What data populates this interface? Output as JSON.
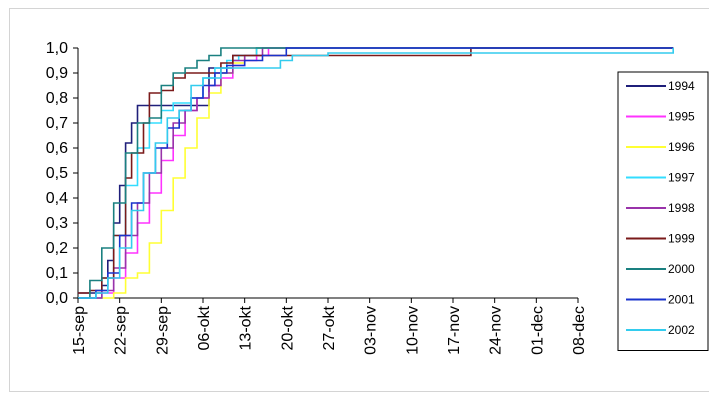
{
  "chart_data": {
    "type": "line",
    "title": "",
    "xlabel": "",
    "ylabel": "",
    "ylim": [
      0,
      1
    ],
    "y_ticks": [
      "0,0",
      "0,1",
      "0,2",
      "0,3",
      "0,4",
      "0,5",
      "0,6",
      "0,7",
      "0,8",
      "0,9",
      "1,0"
    ],
    "x_ticks": [
      "15-sep",
      "22-sep",
      "29-sep",
      "06-okt",
      "13-okt",
      "20-okt",
      "27-okt",
      "03-nov",
      "10-nov",
      "17-nov",
      "24-nov",
      "01-dec",
      "08-dec"
    ],
    "x_unit": "days since 15-sep",
    "legend_position": "right",
    "series": [
      {
        "name": "1994",
        "color": "#1f1f7a",
        "points": [
          [
            0,
            0.02
          ],
          [
            3,
            0.02
          ],
          [
            4,
            0.05
          ],
          [
            5,
            0.15
          ],
          [
            6,
            0.3
          ],
          [
            7,
            0.45
          ],
          [
            8,
            0.62
          ],
          [
            9,
            0.7
          ],
          [
            10,
            0.77
          ],
          [
            14,
            0.77
          ],
          [
            17,
            0.77
          ],
          [
            19,
            0.77
          ],
          [
            21,
            0.77
          ],
          [
            22,
            0.92
          ],
          [
            25,
            0.92
          ],
          [
            26,
            0.97
          ],
          [
            30,
            1.0
          ],
          [
            100,
            1.0
          ]
        ]
      },
      {
        "name": "1995",
        "color": "#ff33ff",
        "points": [
          [
            0,
            0.0
          ],
          [
            4,
            0.02
          ],
          [
            6,
            0.08
          ],
          [
            8,
            0.18
          ],
          [
            10,
            0.3
          ],
          [
            12,
            0.42
          ],
          [
            14,
            0.55
          ],
          [
            16,
            0.65
          ],
          [
            18,
            0.75
          ],
          [
            20,
            0.8
          ],
          [
            22,
            0.85
          ],
          [
            24,
            0.88
          ],
          [
            26,
            0.93
          ],
          [
            28,
            0.95
          ],
          [
            30,
            0.97
          ],
          [
            32,
            1.0
          ],
          [
            100,
            1.0
          ]
        ]
      },
      {
        "name": "1996",
        "color": "#ffff33",
        "points": [
          [
            0,
            0.0
          ],
          [
            6,
            0.02
          ],
          [
            8,
            0.08
          ],
          [
            10,
            0.1
          ],
          [
            12,
            0.22
          ],
          [
            14,
            0.35
          ],
          [
            16,
            0.48
          ],
          [
            18,
            0.6
          ],
          [
            20,
            0.72
          ],
          [
            22,
            0.82
          ],
          [
            24,
            0.9
          ],
          [
            26,
            0.94
          ],
          [
            28,
            0.97
          ],
          [
            30,
            1.0
          ],
          [
            100,
            1.0
          ]
        ]
      },
      {
        "name": "1997",
        "color": "#33ddff",
        "points": [
          [
            0,
            0.0
          ],
          [
            4,
            0.08
          ],
          [
            6,
            0.25
          ],
          [
            8,
            0.45
          ],
          [
            10,
            0.6
          ],
          [
            12,
            0.7
          ],
          [
            14,
            0.75
          ],
          [
            16,
            0.78
          ],
          [
            19,
            0.8
          ],
          [
            21,
            0.88
          ],
          [
            23,
            0.92
          ],
          [
            25,
            0.95
          ],
          [
            27,
            0.97
          ],
          [
            30,
            1.0
          ],
          [
            100,
            1.0
          ]
        ]
      },
      {
        "name": "1998",
        "color": "#9933aa",
        "points": [
          [
            0,
            0.0
          ],
          [
            4,
            0.03
          ],
          [
            6,
            0.12
          ],
          [
            8,
            0.25
          ],
          [
            10,
            0.38
          ],
          [
            12,
            0.5
          ],
          [
            14,
            0.6
          ],
          [
            16,
            0.7
          ],
          [
            18,
            0.75
          ],
          [
            20,
            0.8
          ],
          [
            22,
            0.85
          ],
          [
            24,
            0.9
          ],
          [
            26,
            0.95
          ],
          [
            28,
            0.97
          ],
          [
            31,
            1.0
          ],
          [
            100,
            1.0
          ]
        ]
      },
      {
        "name": "1999",
        "color": "#7a1a1a",
        "points": [
          [
            0,
            0.02
          ],
          [
            2,
            0.03
          ],
          [
            4,
            0.08
          ],
          [
            6,
            0.25
          ],
          [
            8,
            0.48
          ],
          [
            9,
            0.58
          ],
          [
            11,
            0.7
          ],
          [
            12,
            0.82
          ],
          [
            14,
            0.83
          ],
          [
            16,
            0.88
          ],
          [
            18,
            0.9
          ],
          [
            22,
            0.9
          ],
          [
            24,
            0.94
          ],
          [
            26,
            0.97
          ],
          [
            64,
            0.97
          ],
          [
            66,
            1.0
          ],
          [
            100,
            1.0
          ]
        ]
      },
      {
        "name": "2000",
        "color": "#1a8080",
        "points": [
          [
            0,
            0.0
          ],
          [
            2,
            0.07
          ],
          [
            4,
            0.2
          ],
          [
            6,
            0.38
          ],
          [
            8,
            0.58
          ],
          [
            10,
            0.7
          ],
          [
            12,
            0.72
          ],
          [
            14,
            0.85
          ],
          [
            16,
            0.9
          ],
          [
            18,
            0.92
          ],
          [
            20,
            0.95
          ],
          [
            22,
            0.97
          ],
          [
            24,
            1.0
          ],
          [
            100,
            1.0
          ]
        ]
      },
      {
        "name": "2001",
        "color": "#1a33cc",
        "points": [
          [
            0,
            0.0
          ],
          [
            3,
            0.03
          ],
          [
            5,
            0.1
          ],
          [
            7,
            0.25
          ],
          [
            9,
            0.38
          ],
          [
            11,
            0.5
          ],
          [
            13,
            0.6
          ],
          [
            15,
            0.68
          ],
          [
            17,
            0.75
          ],
          [
            19,
            0.8
          ],
          [
            21,
            0.85
          ],
          [
            23,
            0.9
          ],
          [
            25,
            0.93
          ],
          [
            28,
            0.95
          ],
          [
            31,
            0.97
          ],
          [
            35,
            1.0
          ],
          [
            100,
            1.0
          ]
        ]
      },
      {
        "name": "2002",
        "color": "#33ccee",
        "points": [
          [
            0,
            0.0
          ],
          [
            3,
            0.02
          ],
          [
            5,
            0.08
          ],
          [
            7,
            0.2
          ],
          [
            9,
            0.35
          ],
          [
            11,
            0.5
          ],
          [
            13,
            0.62
          ],
          [
            15,
            0.72
          ],
          [
            17,
            0.75
          ],
          [
            19,
            0.85
          ],
          [
            21,
            0.88
          ],
          [
            24,
            0.92
          ],
          [
            29,
            0.92
          ],
          [
            33,
            0.92
          ],
          [
            34,
            0.95
          ],
          [
            36,
            0.97
          ],
          [
            42,
            0.98
          ],
          [
            100,
            1.0
          ]
        ]
      }
    ]
  }
}
